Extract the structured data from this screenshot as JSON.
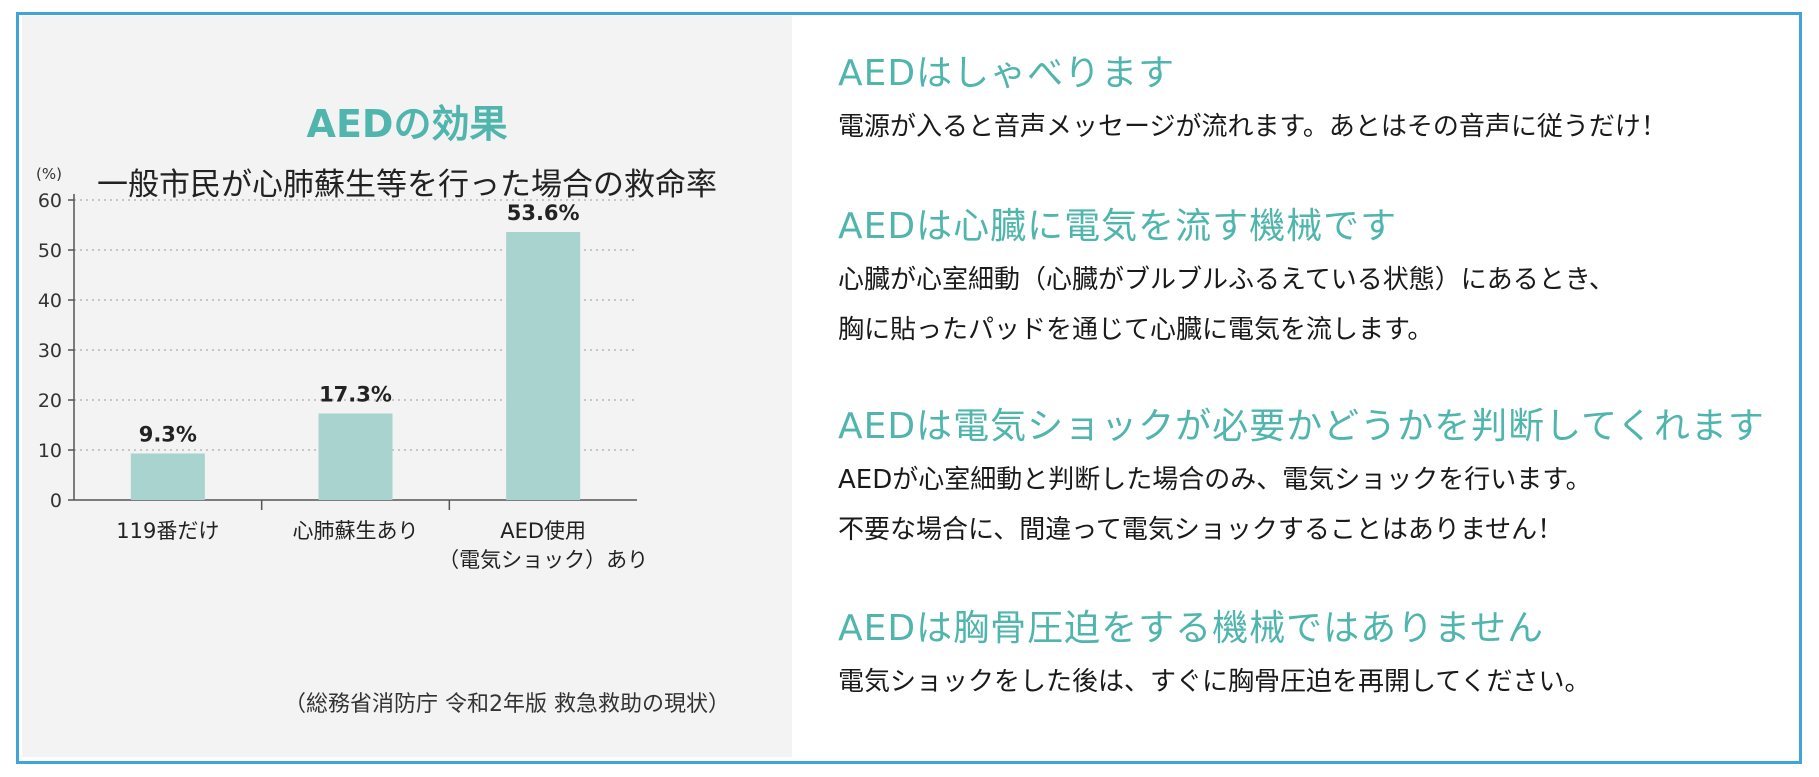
{
  "colors": {
    "border": "#3fa5d8",
    "accent": "#4fb5ad",
    "bar": "#a9d3cf",
    "panel": "#f3f3f3"
  },
  "chart_data": {
    "type": "bar",
    "title": "AEDの効果",
    "subtitle": "一般市民が心肺蘇生等を行った場合の救命率",
    "ylabel": "(%)",
    "ylim": [
      0,
      60
    ],
    "yticks": [
      "0",
      "10",
      "20",
      "30",
      "40",
      "50",
      "60"
    ],
    "grid": true,
    "categories": [
      [
        "119番だけ"
      ],
      [
        "心肺蘇生あり"
      ],
      [
        "AED使用",
        "（電気ショック）あり"
      ]
    ],
    "values": [
      9.3,
      17.3,
      53.6
    ],
    "data_labels": [
      "9.3%",
      "17.3%",
      "53.6%"
    ],
    "source": "（総務省消防庁 令和2年版 救急救助の現状）"
  },
  "sections": [
    {
      "heading": "AEDはしゃべります",
      "body": [
        "電源が入ると音声メッセージが流れます。あとはその音声に従うだけ！"
      ]
    },
    {
      "heading": "AEDは心臓に電気を流す機械です",
      "body": [
        "心臓が心室細動（心臓がブルブルふるえている状態）にあるとき、",
        "胸に貼ったパッドを通じて心臓に電気を流します。"
      ]
    },
    {
      "heading": "AEDは電気ショックが必要かどうかを判断してくれます",
      "body": [
        "AEDが心室細動と判断した場合のみ、電気ショックを行います。",
        "不要な場合に、間違って電気ショックすることはありません！"
      ]
    },
    {
      "heading": "AEDは胸骨圧迫をする機械ではありません",
      "body": [
        "電気ショックをした後は、すぐに胸骨圧迫を再開してください。"
      ]
    }
  ]
}
